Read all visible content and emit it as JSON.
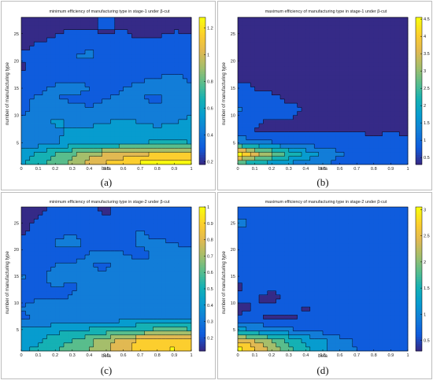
{
  "chart_data": [
    {
      "type": "heatmap",
      "panel_label": "(a)",
      "title": "minimum efficiency of manufacturing type in stage-1 under β-cut",
      "xlabel": "beta",
      "ylabel": "number of manufacturing type",
      "xlim": [
        0,
        1
      ],
      "ylim": [
        1,
        28
      ],
      "x_ticks": [
        "0",
        "0.1",
        "0.2",
        "0.3",
        "0.4",
        "0.5",
        "0.6",
        "0.7",
        "0.8",
        "0.9",
        "1"
      ],
      "y_ticks": [
        "5",
        "10",
        "15",
        "20",
        "25"
      ],
      "colorbar_ticks": [
        "0.2",
        "0.4",
        "0.6",
        "0.8",
        "1",
        "1.2"
      ],
      "clim": [
        0.18,
        1.28
      ],
      "colormap": "parula",
      "x": [
        0,
        0.1,
        0.2,
        0.3,
        0.4,
        0.5,
        0.6,
        0.7,
        0.8,
        0.9,
        1
      ],
      "y": [
        1,
        3,
        5,
        7,
        9,
        11,
        13,
        15,
        17,
        19,
        21,
        23,
        25,
        27,
        28
      ],
      "z": [
        [
          0.62,
          0.7,
          0.78,
          0.9,
          1.0,
          1.08,
          1.15,
          1.2,
          1.24,
          1.25,
          1.22
        ],
        [
          0.55,
          0.65,
          0.72,
          0.8,
          0.9,
          0.96,
          1.0,
          1.04,
          1.06,
          1.08,
          1.05
        ],
        [
          0.4,
          0.45,
          0.5,
          0.55,
          0.58,
          0.6,
          0.62,
          0.62,
          0.63,
          0.64,
          0.62
        ],
        [
          0.42,
          0.46,
          0.5,
          0.52,
          0.54,
          0.55,
          0.56,
          0.55,
          0.54,
          0.56,
          0.55
        ],
        [
          0.44,
          0.48,
          0.52,
          0.5,
          0.48,
          0.5,
          0.52,
          0.5,
          0.48,
          0.5,
          0.52
        ],
        [
          0.36,
          0.44,
          0.5,
          0.44,
          0.42,
          0.46,
          0.48,
          0.46,
          0.44,
          0.48,
          0.5
        ],
        [
          0.38,
          0.42,
          0.4,
          0.38,
          0.36,
          0.4,
          0.42,
          0.4,
          0.38,
          0.42,
          0.44
        ],
        [
          0.32,
          0.38,
          0.42,
          0.44,
          0.4,
          0.36,
          0.4,
          0.42,
          0.44,
          0.46,
          0.42
        ],
        [
          0.3,
          0.34,
          0.36,
          0.38,
          0.36,
          0.34,
          0.36,
          0.38,
          0.4,
          0.42,
          0.38
        ],
        [
          0.28,
          0.3,
          0.32,
          0.34,
          0.3,
          0.28,
          0.3,
          0.32,
          0.34,
          0.36,
          0.34
        ],
        [
          0.3,
          0.34,
          0.38,
          0.4,
          0.42,
          0.38,
          0.36,
          0.34,
          0.36,
          0.38,
          0.36
        ],
        [
          0.26,
          0.3,
          0.34,
          0.36,
          0.38,
          0.4,
          0.36,
          0.32,
          0.3,
          0.32,
          0.34
        ],
        [
          0.22,
          0.24,
          0.28,
          0.32,
          0.3,
          0.28,
          0.3,
          0.26,
          0.28,
          0.3,
          0.28
        ],
        [
          0.2,
          0.22,
          0.24,
          0.26,
          0.28,
          0.3,
          0.28,
          0.26,
          0.24,
          0.26,
          0.28
        ],
        [
          0.2,
          0.22,
          0.24,
          0.26,
          0.28,
          0.3,
          0.28,
          0.26,
          0.24,
          0.26,
          0.28
        ]
      ]
    },
    {
      "type": "heatmap",
      "panel_label": "(b)",
      "title": "maximum efficiency of manufacturing type in stage-1 under β-cut",
      "xlabel": "beta",
      "ylabel": "number of manufacturing type",
      "xlim": [
        0,
        1
      ],
      "ylim": [
        1,
        28
      ],
      "x_ticks": [
        "0",
        "0.1",
        "0.2",
        "0.3",
        "0.4",
        "0.5",
        "0.6",
        "0.7",
        "0.8",
        "0.9",
        "1"
      ],
      "y_ticks": [
        "5",
        "10",
        "15",
        "20",
        "25"
      ],
      "colorbar_ticks": [
        "0.5",
        "1",
        "1.5",
        "2",
        "2.5",
        "3",
        "3.5",
        "4",
        "4.5"
      ],
      "clim": [
        0.3,
        4.55
      ],
      "colormap": "parula",
      "x": [
        0,
        0.1,
        0.2,
        0.3,
        0.4,
        0.5,
        0.6,
        0.7,
        0.8,
        0.9,
        1
      ],
      "y": [
        1,
        3,
        5,
        7,
        9,
        11,
        13,
        15,
        17,
        19,
        21,
        23,
        25,
        27,
        28
      ],
      "z": [
        [
          2.2,
          1.9,
          1.7,
          1.5,
          1.3,
          1.2,
          1.0,
          0.9,
          0.85,
          0.8,
          0.8
        ],
        [
          4.5,
          3.6,
          2.9,
          2.4,
          1.9,
          1.5,
          1.2,
          1.0,
          0.9,
          0.85,
          0.85
        ],
        [
          1.6,
          1.4,
          1.2,
          1.0,
          0.95,
          0.9,
          0.85,
          0.8,
          0.8,
          0.8,
          0.8
        ],
        [
          0.7,
          0.72,
          0.7,
          0.72,
          0.7,
          0.72,
          0.7,
          0.72,
          0.7,
          0.72,
          0.7
        ],
        [
          0.9,
          0.75,
          0.7,
          0.72,
          0.7,
          0.72,
          0.7,
          0.7,
          0.72,
          0.7,
          0.7
        ],
        [
          1.2,
          1.0,
          0.8,
          0.75,
          0.72,
          0.7,
          0.72,
          0.7,
          0.72,
          0.7,
          0.72
        ],
        [
          0.85,
          0.8,
          0.75,
          0.7,
          0.72,
          0.7,
          0.72,
          0.7,
          0.7,
          0.72,
          0.7
        ],
        [
          0.75,
          0.72,
          0.7,
          0.72,
          0.7,
          0.72,
          0.7,
          0.72,
          0.7,
          0.7,
          0.72
        ],
        [
          0.7,
          0.72,
          0.7,
          0.7,
          0.72,
          0.7,
          0.72,
          0.7,
          0.72,
          0.7,
          0.7
        ],
        [
          0.7,
          0.7,
          0.72,
          0.7,
          0.7,
          0.72,
          0.7,
          0.7,
          0.72,
          0.7,
          0.7
        ],
        [
          0.7,
          0.72,
          0.7,
          0.7,
          0.72,
          0.7,
          0.7,
          0.72,
          0.7,
          0.7,
          0.72
        ],
        [
          0.72,
          0.7,
          0.72,
          0.7,
          0.7,
          0.72,
          0.7,
          0.7,
          0.72,
          0.7,
          0.7
        ],
        [
          0.72,
          0.7,
          0.7,
          0.72,
          0.7,
          0.7,
          0.72,
          0.7,
          0.7,
          0.72,
          0.7
        ],
        [
          0.7,
          0.72,
          0.7,
          0.7,
          0.72,
          0.7,
          0.7,
          0.72,
          0.7,
          0.7,
          0.72
        ],
        [
          0.7,
          0.7,
          0.72,
          0.7,
          0.7,
          0.72,
          0.7,
          0.7,
          0.72,
          0.7,
          0.7
        ]
      ]
    },
    {
      "type": "heatmap",
      "panel_label": "(c)",
      "title": "minimum efficiency of manufacturing type in stage-2 under β-cut",
      "xlabel": "beta",
      "ylabel": "number of manufacturing type",
      "xlim": [
        0,
        1
      ],
      "ylim": [
        1,
        28
      ],
      "x_ticks": [
        "0",
        "0.1",
        "0.2",
        "0.3",
        "0.4",
        "0.5",
        "0.6",
        "0.7",
        "0.8",
        "0.9",
        "1"
      ],
      "y_ticks": [
        "5",
        "10",
        "15",
        "20",
        "25"
      ],
      "colorbar_ticks": [
        "0.2",
        "0.3",
        "0.4",
        "0.5",
        "0.6",
        "0.7",
        "0.8",
        "0.9",
        "1"
      ],
      "clim": [
        0.12,
        1.0
      ],
      "colormap": "parula",
      "x": [
        0,
        0.1,
        0.2,
        0.3,
        0.4,
        0.5,
        0.6,
        0.7,
        0.8,
        0.9,
        1
      ],
      "y": [
        1,
        3,
        5,
        7,
        9,
        11,
        13,
        15,
        17,
        19,
        21,
        23,
        25,
        27,
        28
      ],
      "z": [
        [
          0.45,
          0.5,
          0.55,
          0.6,
          0.65,
          0.72,
          0.8,
          0.86,
          0.9,
          0.92,
          0.88
        ],
        [
          0.4,
          0.46,
          0.52,
          0.56,
          0.62,
          0.7,
          0.78,
          0.84,
          0.88,
          0.9,
          0.84
        ],
        [
          0.4,
          0.42,
          0.44,
          0.46,
          0.48,
          0.5,
          0.52,
          0.55,
          0.58,
          0.6,
          0.56
        ],
        [
          0.28,
          0.3,
          0.32,
          0.34,
          0.36,
          0.34,
          0.36,
          0.38,
          0.36,
          0.38,
          0.36
        ],
        [
          0.3,
          0.32,
          0.34,
          0.3,
          0.32,
          0.34,
          0.36,
          0.34,
          0.32,
          0.36,
          0.34
        ],
        [
          0.26,
          0.3,
          0.28,
          0.3,
          0.34,
          0.36,
          0.32,
          0.3,
          0.34,
          0.36,
          0.32
        ],
        [
          0.28,
          0.26,
          0.3,
          0.28,
          0.32,
          0.34,
          0.36,
          0.34,
          0.3,
          0.32,
          0.34
        ],
        [
          0.3,
          0.28,
          0.32,
          0.34,
          0.3,
          0.32,
          0.34,
          0.36,
          0.32,
          0.34,
          0.36
        ],
        [
          0.24,
          0.26,
          0.3,
          0.32,
          0.3,
          0.28,
          0.32,
          0.34,
          0.3,
          0.32,
          0.34
        ],
        [
          0.28,
          0.3,
          0.28,
          0.26,
          0.3,
          0.32,
          0.3,
          0.28,
          0.3,
          0.34,
          0.32
        ],
        [
          0.22,
          0.26,
          0.3,
          0.32,
          0.28,
          0.26,
          0.28,
          0.3,
          0.32,
          0.3,
          0.28
        ],
        [
          0.2,
          0.24,
          0.28,
          0.3,
          0.26,
          0.24,
          0.28,
          0.3,
          0.28,
          0.26,
          0.3
        ],
        [
          0.18,
          0.22,
          0.24,
          0.26,
          0.24,
          0.22,
          0.26,
          0.28,
          0.26,
          0.24,
          0.28
        ],
        [
          0.16,
          0.2,
          0.22,
          0.24,
          0.22,
          0.2,
          0.24,
          0.26,
          0.24,
          0.22,
          0.26
        ],
        [
          0.16,
          0.2,
          0.22,
          0.24,
          0.22,
          0.2,
          0.24,
          0.26,
          0.24,
          0.22,
          0.26
        ]
      ]
    },
    {
      "type": "heatmap",
      "panel_label": "(d)",
      "title": "maximum efficiency of manufacturing type in stage-2 under β-cut",
      "xlabel": "beta",
      "ylabel": "number of manufacturing type",
      "xlim": [
        0,
        1
      ],
      "ylim": [
        1,
        28
      ],
      "x_ticks": [
        "0",
        "0.1",
        "0.2",
        "0.3",
        "0.4",
        "0.5",
        "0.6",
        "0.7",
        "0.8",
        "0.9",
        "1"
      ],
      "y_ticks": [
        "5",
        "10",
        "15",
        "20",
        "25"
      ],
      "colorbar_ticks": [
        "0.5",
        "1",
        "1.5",
        "2",
        "2.5",
        "3"
      ],
      "clim": [
        0.3,
        3.05
      ],
      "colormap": "parula",
      "x": [
        0,
        0.1,
        0.2,
        0.3,
        0.4,
        0.5,
        0.6,
        0.7,
        0.8,
        0.9,
        1
      ],
      "y": [
        1,
        3,
        5,
        7,
        9,
        11,
        13,
        15,
        17,
        19,
        21,
        23,
        25,
        27,
        28
      ],
      "z": [
        [
          3.0,
          2.6,
          2.2,
          1.8,
          1.5,
          1.2,
          1.0,
          0.85,
          0.75,
          0.7,
          0.7
        ],
        [
          2.5,
          2.2,
          1.9,
          1.6,
          1.35,
          1.15,
          0.95,
          0.8,
          0.7,
          0.65,
          0.65
        ],
        [
          1.2,
          1.1,
          1.0,
          0.9,
          0.8,
          0.72,
          0.65,
          0.6,
          0.6,
          0.6,
          0.6
        ],
        [
          0.6,
          0.6,
          0.55,
          0.55,
          0.6,
          0.62,
          0.6,
          0.58,
          0.6,
          0.6,
          0.58
        ],
        [
          0.55,
          0.58,
          0.6,
          0.6,
          0.56,
          0.6,
          0.62,
          0.6,
          0.58,
          0.6,
          0.6
        ],
        [
          0.6,
          0.58,
          0.55,
          0.6,
          0.6,
          0.58,
          0.6,
          0.62,
          0.6,
          0.58,
          0.6
        ],
        [
          0.56,
          0.6,
          0.6,
          0.58,
          0.6,
          0.6,
          0.62,
          0.6,
          0.58,
          0.6,
          0.6
        ],
        [
          0.6,
          0.62,
          0.6,
          0.58,
          0.6,
          0.6,
          0.58,
          0.6,
          0.62,
          0.6,
          0.58
        ],
        [
          0.58,
          0.6,
          0.62,
          0.6,
          0.58,
          0.6,
          0.6,
          0.58,
          0.6,
          0.62,
          0.6
        ],
        [
          0.6,
          0.58,
          0.6,
          0.62,
          0.6,
          0.58,
          0.6,
          0.62,
          0.6,
          0.58,
          0.6
        ],
        [
          0.62,
          0.6,
          0.58,
          0.6,
          0.62,
          0.6,
          0.58,
          0.6,
          0.6,
          0.62,
          0.6
        ],
        [
          0.6,
          0.62,
          0.6,
          0.58,
          0.6,
          0.62,
          0.6,
          0.58,
          0.6,
          0.6,
          0.62
        ],
        [
          0.95,
          0.85,
          0.75,
          0.65,
          0.6,
          0.6,
          0.62,
          0.6,
          0.58,
          0.6,
          0.6
        ],
        [
          0.7,
          0.65,
          0.62,
          0.6,
          0.58,
          0.6,
          0.6,
          0.62,
          0.6,
          0.58,
          0.6
        ],
        [
          0.7,
          0.65,
          0.62,
          0.6,
          0.58,
          0.6,
          0.6,
          0.62,
          0.6,
          0.58,
          0.6
        ]
      ]
    }
  ]
}
